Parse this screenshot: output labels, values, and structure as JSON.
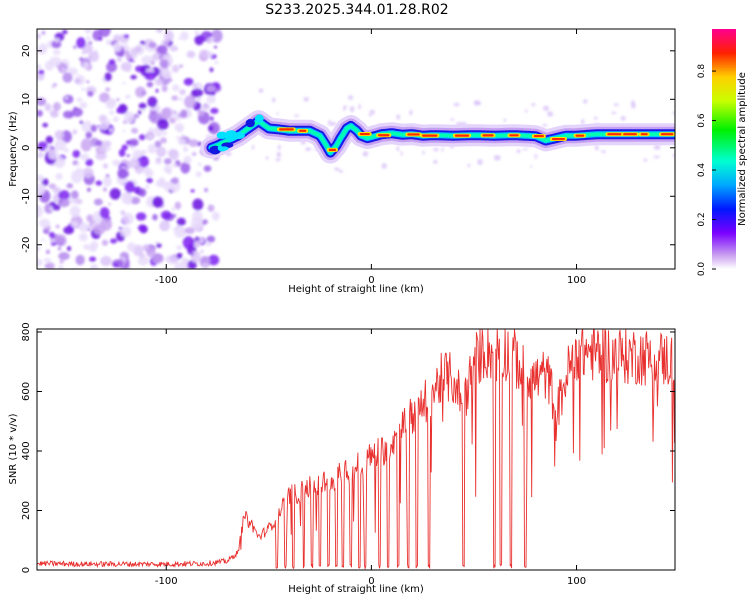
{
  "title": "S233.2025.344.01.28.R02",
  "chart_data": [
    {
      "type": "heatmap",
      "name": "spectrogram",
      "xlabel": "Height of straight line (km)",
      "ylabel": "Frequency (Hz)",
      "xlim": [
        -163,
        148
      ],
      "ylim": [
        -25,
        24.5
      ],
      "xticks": [
        -100,
        0,
        100
      ],
      "yticks": [
        -20,
        -10,
        0,
        10,
        20
      ],
      "noise_region_x": [
        -163,
        -75
      ],
      "ridge": {
        "x": [
          -78,
          -75,
          -70,
          -65,
          -60,
          -55,
          -50,
          -45,
          -40,
          -35,
          -30,
          -25,
          -22,
          -20,
          -17,
          -15,
          -12,
          -10,
          -7,
          -5,
          -2,
          0,
          5,
          10,
          15,
          20,
          25,
          30,
          40,
          50,
          60,
          70,
          80,
          85,
          90,
          95,
          100,
          110,
          120,
          130,
          140,
          148
        ],
        "freq": [
          0,
          0.5,
          1.5,
          2.5,
          4.0,
          5.5,
          4.0,
          3.8,
          3.5,
          3.5,
          3.5,
          2.5,
          0.5,
          -1.0,
          0.5,
          2.0,
          4.0,
          4.5,
          3.5,
          2.5,
          2.0,
          2.2,
          2.8,
          3.0,
          2.7,
          2.8,
          2.5,
          2.6,
          2.5,
          2.6,
          2.5,
          2.6,
          2.4,
          1.5,
          2.0,
          2.5,
          2.5,
          2.8,
          2.8,
          2.8,
          2.8,
          2.8
        ]
      },
      "colorbar": {
        "label": "Normalized spectral amplitude",
        "min": 0.0,
        "max": 0.97,
        "ticks": [
          0.0,
          0.2,
          0.4,
          0.6,
          0.8
        ],
        "tick_labels": [
          "0.0",
          "0.2",
          "0.4",
          "0.6",
          "0.8"
        ]
      }
    },
    {
      "type": "line",
      "name": "snr",
      "xlabel": "Height of straight line (km)",
      "ylabel": "SNR (10 * v/v)",
      "xlim": [
        -163,
        148
      ],
      "ylim": [
        0,
        810
      ],
      "xticks": [
        -100,
        0,
        100
      ],
      "yticks": [
        0,
        200,
        400,
        600,
        800
      ],
      "color": "#e8312f",
      "envelope": {
        "x": [
          -163,
          -140,
          -120,
          -100,
          -80,
          -70,
          -65,
          -62,
          -58,
          -55,
          -50,
          -45,
          -40,
          -35,
          -30,
          -25,
          -20,
          -15,
          -10,
          -5,
          0,
          5,
          10,
          15,
          20,
          25,
          30,
          35,
          40,
          45,
          50,
          55,
          60,
          65,
          70,
          75,
          80,
          85,
          88,
          90,
          95,
          100,
          110,
          120,
          130,
          140,
          148
        ],
        "snr": [
          22,
          20,
          20,
          20,
          22,
          30,
          60,
          180,
          150,
          110,
          140,
          190,
          250,
          260,
          280,
          290,
          300,
          320,
          330,
          360,
          380,
          400,
          430,
          480,
          520,
          550,
          600,
          650,
          640,
          560,
          700,
          740,
          730,
          740,
          710,
          660,
          640,
          660,
          600,
          520,
          650,
          740,
          730,
          720,
          720,
          710,
          705
        ]
      },
      "dropouts_x": [
        -46,
        -42,
        -38,
        -33,
        -29,
        -25,
        -21,
        -17,
        -14,
        -10,
        -6,
        -3,
        4,
        8,
        13,
        18,
        22,
        28,
        45,
        60,
        63,
        68,
        75
      ]
    }
  ]
}
